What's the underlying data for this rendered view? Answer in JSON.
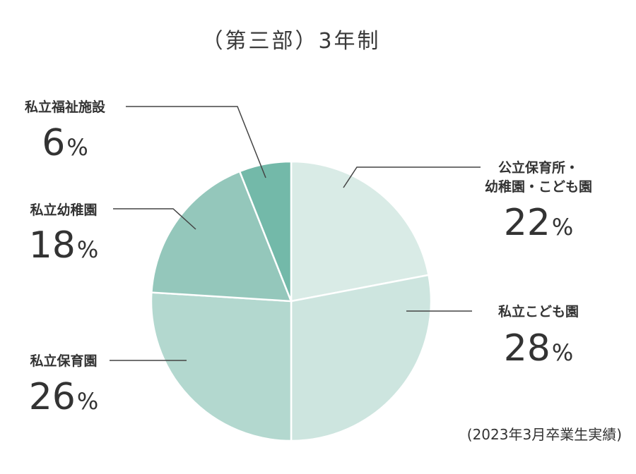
{
  "chart_data": {
    "type": "pie",
    "title": "（第三部）3年制",
    "note": "(2023年3月卒業生実績)",
    "percent_sign": "%",
    "slices": [
      {
        "label": [
          "公立保育所・",
          "幼稚園・こども園"
        ],
        "value": 22,
        "color": "#d9ebe6"
      },
      {
        "label": [
          "私立こども園"
        ],
        "value": 28,
        "color": "#cde5df"
      },
      {
        "label": [
          "私立保育園"
        ],
        "value": 26,
        "color": "#b3d8cf"
      },
      {
        "label": [
          "私立幼稚園"
        ],
        "value": 18,
        "color": "#94c7bb"
      },
      {
        "label": [
          "私立福祉施設"
        ],
        "value": 6,
        "color": "#73b9a9"
      }
    ]
  }
}
